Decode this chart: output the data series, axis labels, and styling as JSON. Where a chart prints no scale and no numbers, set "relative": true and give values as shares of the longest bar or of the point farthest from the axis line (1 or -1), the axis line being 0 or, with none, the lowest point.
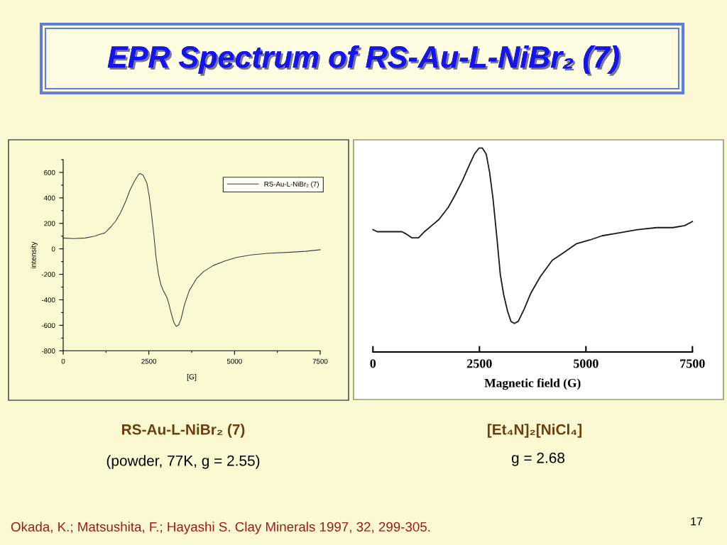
{
  "chart_data": [
    {
      "type": "line",
      "title": "EPR Spectrum of RS-Au-L-NiBr₂ (7)",
      "xlabel": "[G]",
      "ylabel": "intensity",
      "x": [
        0,
        300,
        640,
        920,
        1130,
        1200,
        1260,
        1400,
        1540,
        1680,
        1820,
        1950,
        2090,
        2200,
        2240,
        2330,
        2440,
        2510,
        2580,
        2650,
        2710,
        2780,
        2850,
        2920,
        3030,
        3090,
        3160,
        3230,
        3300,
        3370,
        3440,
        3540,
        3680,
        3890,
        4100,
        4370,
        4720,
        5060,
        5480,
        5960,
        6650,
        7070,
        7500
      ],
      "series": [
        {
          "name": "RS-Au-L-NiBr₂ (7)",
          "color": "#404040",
          "values": [
            85,
            80,
            85,
            100,
            119,
            123,
            137,
            175,
            221,
            286,
            370,
            462,
            537,
            583,
            592,
            579,
            518,
            416,
            267,
            100,
            -67,
            -197,
            -280,
            -327,
            -383,
            -438,
            -513,
            -578,
            -609,
            -596,
            -550,
            -438,
            -327,
            -234,
            -178,
            -132,
            -95,
            -67,
            -48,
            -35,
            -26,
            -19,
            -7
          ]
        }
      ],
      "xlim": [
        0,
        7500
      ],
      "xticks": [
        0,
        {
          "value": 1250,
          "label": null
        },
        2500,
        {
          "value": 3750,
          "label": null
        },
        5000,
        {
          "value": 6250,
          "label": null
        },
        7500
      ],
      "ylim": [
        -800,
        700
      ],
      "yticks": [
        -800,
        {
          "value": -700,
          "label": null
        },
        -600,
        {
          "value": -500,
          "label": null
        },
        -400,
        {
          "value": -300,
          "label": null
        },
        -200,
        {
          "value": -100,
          "label": null
        },
        0,
        {
          "value": 100,
          "label": null
        },
        200,
        {
          "value": 300,
          "label": null
        },
        400,
        {
          "value": 500,
          "label": null
        },
        600,
        {
          "value": 700,
          "label": null
        }
      ],
      "legend": "top right",
      "annotations": [
        "RS-Au-L-NiBr₂ (7)",
        "(powder, 77K, g = 2.55)",
        "Okada, K.; Matsushita, F.; Hayashi S. Clay Minerals 1997, 32, 299-305.",
        "17"
      ]
    },
    {
      "type": "line",
      "relative": true,
      "xlabel": "Magnetic field (G)",
      "x": [
        0,
        100,
        380,
        600,
        680,
        770,
        910,
        990,
        1070,
        1210,
        1380,
        1550,
        1770,
        1930,
        2100,
        2270,
        2380,
        2490,
        2570,
        2660,
        2740,
        2820,
        2910,
        2990,
        3070,
        3160,
        3240,
        3320,
        3410,
        3550,
        3710,
        3930,
        4210,
        4430,
        4770,
        5100,
        5380,
        5660,
        6210,
        6660,
        7040,
        7320,
        7500
      ],
      "series": [
        {
          "color": "#1a1a1a",
          "values": [
            0.6,
            0.59,
            0.59,
            0.59,
            0.59,
            0.58,
            0.56,
            0.56,
            0.56,
            0.59,
            0.62,
            0.65,
            0.71,
            0.77,
            0.84,
            0.92,
            0.97,
            1,
            1,
            0.97,
            0.88,
            0.75,
            0.56,
            0.38,
            0.28,
            0.2,
            0.15,
            0.14,
            0.15,
            0.21,
            0.29,
            0.37,
            0.45,
            0.48,
            0.53,
            0.55,
            0.57,
            0.58,
            0.6,
            0.61,
            0.61,
            0.62,
            0.64
          ]
        }
      ],
      "xlim": [
        0,
        7500
      ],
      "xticks": [
        0,
        2500,
        5000,
        7500
      ],
      "tick_labels": "x",
      "annotations": [
        "[Et₄N]₂[NiCl₄]",
        "g = 2.68"
      ]
    }
  ]
}
